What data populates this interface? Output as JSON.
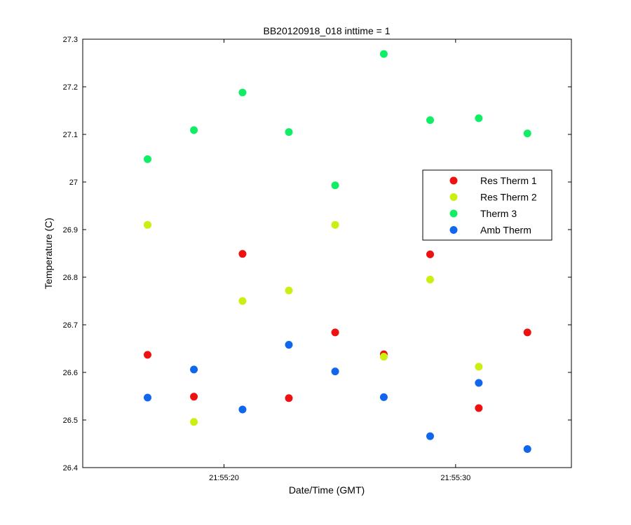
{
  "chart_data": {
    "type": "scatter",
    "title": "BB20120918_018 inttime = 1",
    "xlabel": "Date/Time (GMT)",
    "ylabel": "Temperature (C)",
    "x_unit": "seconds after 21:55:00",
    "xlim": [
      13.9,
      35.0
    ],
    "ylim": [
      26.4,
      27.3
    ],
    "x_ticks": [
      {
        "value": 20,
        "label": "21:55:20"
      },
      {
        "value": 30,
        "label": "21:55:30"
      }
    ],
    "y_ticks": [
      26.4,
      26.5,
      26.6,
      26.7,
      26.8,
      26.9,
      27,
      27.1,
      27.2,
      27.3
    ],
    "y_tick_labels": [
      "26.4",
      "26.5",
      "26.6",
      "26.7",
      "26.8",
      "26.9",
      "27",
      "27.1",
      "27.2",
      "27.3"
    ],
    "grid": false,
    "legend_position": "right",
    "x": [
      16.7,
      18.7,
      20.8,
      22.8,
      24.8,
      26.9,
      28.9,
      31.0,
      33.1
    ],
    "series": [
      {
        "name": "Res Therm 1",
        "color": "#ee1111",
        "values": [
          26.637,
          26.549,
          26.849,
          26.546,
          26.684,
          26.638,
          26.848,
          26.525,
          26.684
        ]
      },
      {
        "name": "Res Therm 2",
        "color": "#ccee11",
        "values": [
          26.91,
          26.496,
          26.75,
          26.772,
          26.91,
          26.633,
          26.795,
          26.612,
          null
        ]
      },
      {
        "name": "Therm 3",
        "color": "#11ee66",
        "values": [
          27.048,
          27.109,
          27.188,
          27.105,
          26.993,
          27.269,
          27.13,
          27.134,
          27.102
        ]
      },
      {
        "name": "Amb Therm",
        "color": "#1166ee",
        "values": [
          26.547,
          26.606,
          26.522,
          26.658,
          26.602,
          26.548,
          26.466,
          26.578,
          26.439
        ]
      }
    ]
  }
}
